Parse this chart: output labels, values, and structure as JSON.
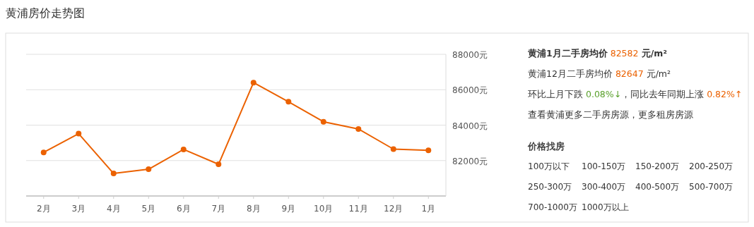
{
  "chart_data": [
    {
      "type": "line",
      "title": "黄浦房价走势图",
      "categories": [
        "2月",
        "3月",
        "4月",
        "5月",
        "6月",
        "7月",
        "8月",
        "9月",
        "10月",
        "11月",
        "12月",
        "1月"
      ],
      "series": [
        {
          "color": "#eb6100",
          "values": [
            82460,
            83520,
            81270,
            81510,
            82630,
            81790,
            86400,
            85320,
            84190,
            83780,
            82647,
            82582
          ]
        }
      ],
      "ylim": [
        80000,
        88000
      ],
      "yticks": [
        {
          "value": 82000,
          "label": "82000元"
        },
        {
          "value": 84000,
          "label": "84000元"
        },
        {
          "value": 86000,
          "label": "86000元"
        },
        {
          "value": 88000,
          "label": "88000元"
        }
      ],
      "grid": "y",
      "marker": "circle",
      "line_style": "solid"
    },
    {
      "type": "other",
      "annotations": [
        "黄浦1月二手房均价 82582 元/m²",
        "黄浦12月二手房均价 82647 元/m²",
        "环比上月下跌 0.08%↓，同比去年同期上涨 0.82%↑",
        "查看黄浦更多二手房房源，更多租房房源"
      ]
    },
    {
      "type": "other",
      "title": "价格找房",
      "annotations": [
        "100万以下",
        "100-150万",
        "150-200万",
        "200-250万",
        "250-300万",
        "300-400万",
        "400-500万",
        "500-700万",
        "700-1000万",
        "1000万以上"
      ]
    }
  ]
}
